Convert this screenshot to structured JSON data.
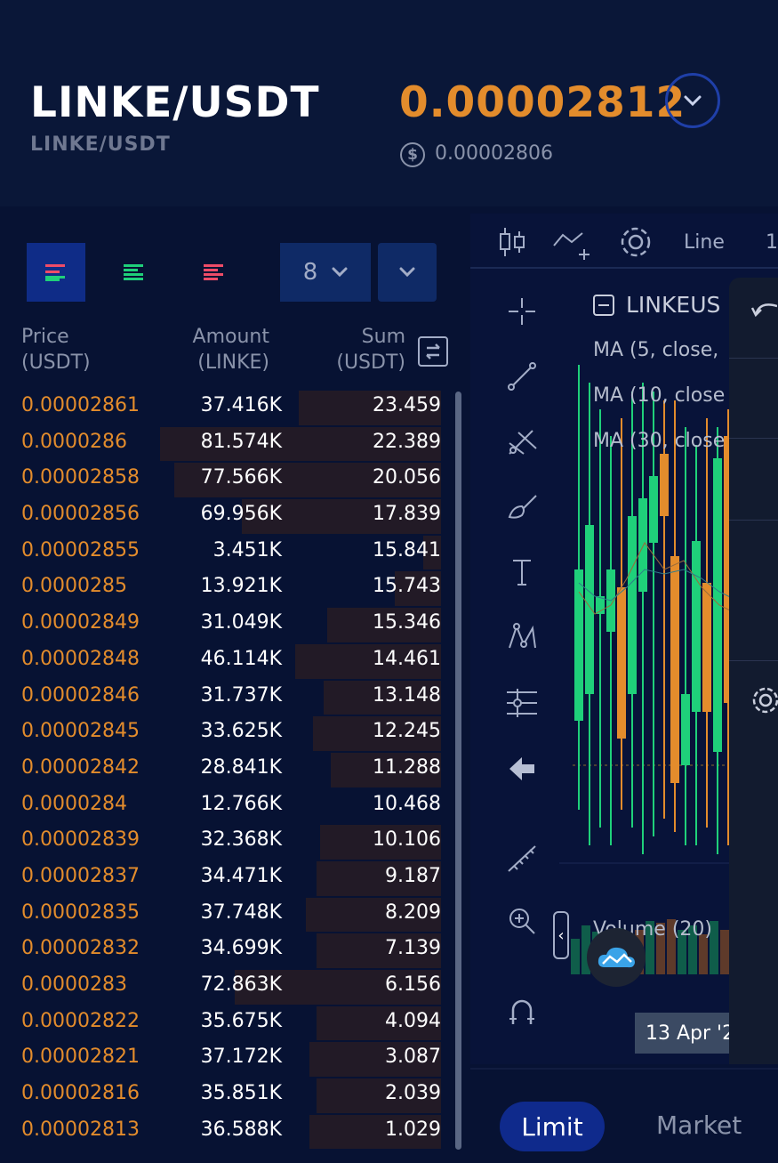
{
  "header": {
    "pair": "LINKE/USDT",
    "pair_sub": "LINKE/USDT",
    "last_price": "0.00002812",
    "usd_symbol": "$",
    "usd_price": "0.00002806"
  },
  "book": {
    "precision": "8",
    "columns": {
      "price": "Price",
      "price_unit": "(USDT)",
      "amount": "Amount",
      "amount_unit": "(LINKE)",
      "sum": "Sum",
      "sum_unit": "(USDT)"
    },
    "rows": [
      {
        "price": "0.00002861",
        "amount": "37.416K",
        "sum": "23.459",
        "depth": 0.4
      },
      {
        "price": "0.0000286",
        "amount": "81.574K",
        "sum": "22.389",
        "depth": 0.79
      },
      {
        "price": "0.00002858",
        "amount": "77.566K",
        "sum": "20.056",
        "depth": 0.75
      },
      {
        "price": "0.00002856",
        "amount": "69.956K",
        "sum": "17.839",
        "depth": 0.56
      },
      {
        "price": "0.00002855",
        "amount": "3.451K",
        "sum": "15.841",
        "depth": 0.05
      },
      {
        "price": "0.0000285",
        "amount": "13.921K",
        "sum": "15.743",
        "depth": 0.13
      },
      {
        "price": "0.00002849",
        "amount": "31.049K",
        "sum": "15.346",
        "depth": 0.32
      },
      {
        "price": "0.00002848",
        "amount": "46.114K",
        "sum": "14.461",
        "depth": 0.41
      },
      {
        "price": "0.00002846",
        "amount": "31.737K",
        "sum": "13.148",
        "depth": 0.33
      },
      {
        "price": "0.00002845",
        "amount": "33.625K",
        "sum": "12.245",
        "depth": 0.36
      },
      {
        "price": "0.00002842",
        "amount": "28.841K",
        "sum": "11.288",
        "depth": 0.31
      },
      {
        "price": "0.0000284",
        "amount": "12.766K",
        "sum": "10.468",
        "depth": 0.0
      },
      {
        "price": "0.00002839",
        "amount": "32.368K",
        "sum": "10.106",
        "depth": 0.34
      },
      {
        "price": "0.00002837",
        "amount": "34.471K",
        "sum": "9.187",
        "depth": 0.35
      },
      {
        "price": "0.00002835",
        "amount": "37.748K",
        "sum": "8.209",
        "depth": 0.38
      },
      {
        "price": "0.00002832",
        "amount": "34.699K",
        "sum": "7.139",
        "depth": 0.35
      },
      {
        "price": "0.0000283",
        "amount": "72.863K",
        "sum": "6.156",
        "depth": 0.58
      },
      {
        "price": "0.00002822",
        "amount": "35.675K",
        "sum": "4.094",
        "depth": 0.35
      },
      {
        "price": "0.00002821",
        "amount": "37.172K",
        "sum": "3.087",
        "depth": 0.37
      },
      {
        "price": "0.00002816",
        "amount": "35.851K",
        "sum": "2.039",
        "depth": 0.35
      },
      {
        "price": "0.00002813",
        "amount": "36.588K",
        "sum": "1.029",
        "depth": 0.37
      }
    ]
  },
  "chart": {
    "toolbar": {
      "line_label": "Line",
      "frag_label": "1"
    },
    "legend_title": "LINKEUS",
    "ma": [
      "MA (5, close,",
      "MA (10, close",
      "MA (30, close"
    ],
    "volume_label": "Volume (20)",
    "date_label": "13 Apr '2",
    "icons": [
      "candlestick-icon",
      "indicator-icon",
      "settings-icon",
      "crosshair-icon",
      "trendline-icon",
      "pitchfork-icon",
      "brush-icon",
      "text-icon",
      "pattern-icon",
      "measure-icon",
      "back-arrow-icon",
      "ruler-icon",
      "zoom-in-icon",
      "magnet-icon"
    ]
  },
  "order_type": {
    "limit": "Limit",
    "market": "Market"
  },
  "colors": {
    "ask": "#e38c2c",
    "bid": "#1fd07a",
    "accent": "#0f2a8c",
    "bg": "#071233"
  }
}
